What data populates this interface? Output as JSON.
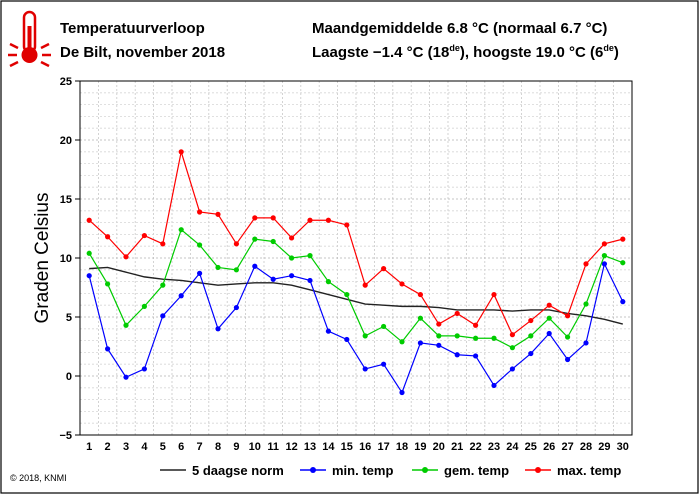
{
  "header": {
    "title": "Temperatuurverloop",
    "subtitle": "De Bilt, november 2018",
    "mean_line": "Maandgemiddelde 6.8 °C (normaal 6.7 °C)",
    "extremes_prefix": "Laagste −1.4 °C (18",
    "extremes_sup1": "de",
    "extremes_mid": "), hoogste 19.0 °C (6",
    "extremes_sup2": "de",
    "extremes_suffix": ")"
  },
  "copyright": "© 2018, KNMI",
  "icon": "thermometer-icon",
  "chart_data": {
    "type": "line",
    "ylabel": "Graden Celsius",
    "ylim": [
      -5,
      25
    ],
    "yticks": [
      -5,
      0,
      5,
      10,
      15,
      20,
      25
    ],
    "ytick_labels": [
      "−5",
      "0",
      "5",
      "10",
      "15",
      "20",
      "25"
    ],
    "x": [
      1,
      2,
      3,
      4,
      5,
      6,
      7,
      8,
      9,
      10,
      11,
      12,
      13,
      14,
      15,
      16,
      17,
      18,
      19,
      20,
      21,
      22,
      23,
      24,
      25,
      26,
      27,
      28,
      29,
      30
    ],
    "xtick_labels": [
      "1",
      "2",
      "3",
      "4",
      "5",
      "6",
      "7",
      "8",
      "9",
      "10",
      "11",
      "12",
      "13",
      "14",
      "15",
      "16",
      "17",
      "18",
      "19",
      "20",
      "21",
      "22",
      "23",
      "24",
      "25",
      "26",
      "27",
      "28",
      "29",
      "30"
    ],
    "grid": true,
    "legend_position": "bottom",
    "series": [
      {
        "name": "5 daagse norm",
        "color": "#222222",
        "marker": false,
        "values": [
          9.1,
          9.2,
          8.8,
          8.4,
          8.2,
          8.1,
          7.9,
          7.7,
          7.8,
          7.9,
          7.9,
          7.7,
          7.3,
          6.9,
          6.5,
          6.1,
          6.0,
          5.9,
          5.9,
          5.8,
          5.6,
          5.6,
          5.6,
          5.5,
          5.6,
          5.6,
          5.3,
          5.1,
          4.8,
          4.4
        ]
      },
      {
        "name": "min. temp",
        "color": "#0000ff",
        "marker": true,
        "values": [
          8.5,
          2.3,
          -0.1,
          0.6,
          5.1,
          6.8,
          8.7,
          4.0,
          5.8,
          9.3,
          8.2,
          8.5,
          8.1,
          3.8,
          3.1,
          0.6,
          1.0,
          -1.4,
          2.8,
          2.6,
          1.8,
          1.7,
          -0.8,
          0.6,
          1.9,
          3.6,
          1.4,
          2.8,
          9.5,
          6.3
        ]
      },
      {
        "name": "gem. temp",
        "color": "#00cc00",
        "marker": true,
        "values": [
          10.4,
          7.8,
          4.3,
          5.9,
          7.7,
          12.4,
          11.1,
          9.2,
          9.0,
          11.6,
          11.4,
          10.0,
          10.2,
          8.0,
          6.9,
          3.4,
          4.2,
          2.9,
          4.9,
          3.4,
          3.4,
          3.2,
          3.2,
          2.4,
          3.4,
          4.9,
          3.3,
          6.1,
          10.2,
          9.6
        ]
      },
      {
        "name": "max. temp",
        "color": "#ff0000",
        "marker": true,
        "values": [
          13.2,
          11.8,
          10.1,
          11.9,
          11.2,
          19.0,
          13.9,
          13.7,
          11.2,
          13.4,
          13.4,
          11.7,
          13.2,
          13.2,
          12.8,
          7.7,
          9.1,
          7.8,
          6.9,
          4.4,
          5.3,
          4.3,
          6.9,
          3.5,
          4.7,
          6.0,
          5.1,
          9.5,
          11.2,
          11.6
        ]
      }
    ]
  }
}
